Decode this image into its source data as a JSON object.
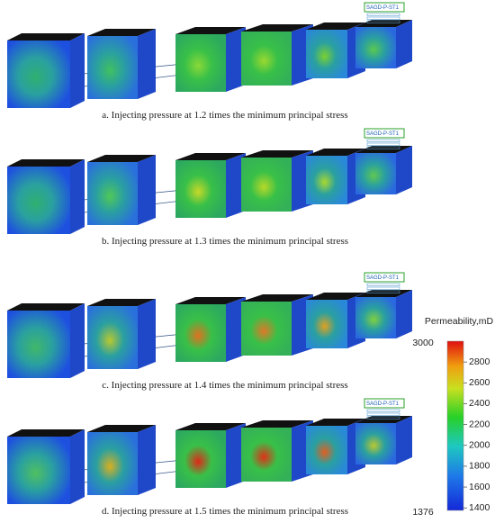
{
  "figure": {
    "panels": [
      {
        "caption": "a. Injecting pressure at 1.2 times the minimum principal stress",
        "well_label": "SAGD-P-ST1"
      },
      {
        "caption": "b. Injecting pressure at 1.3 times the minimum principal stress",
        "well_label": "SAGD-P-ST1"
      },
      {
        "caption": "c. Injecting pressure at 1.4 times the minimum principal stress",
        "well_label": "SAGD-P-ST1"
      },
      {
        "caption": "d. Injecting pressure at 1.5 times the minimum principal stress",
        "well_label": "SAGD-P-ST1"
      }
    ],
    "colorbar": {
      "title": "Permeability,mD",
      "max_label": 3000,
      "min_label": 1376,
      "ticks": [
        1400,
        1600,
        1800,
        2000,
        2200,
        2400,
        2600,
        2800
      ]
    }
  }
}
